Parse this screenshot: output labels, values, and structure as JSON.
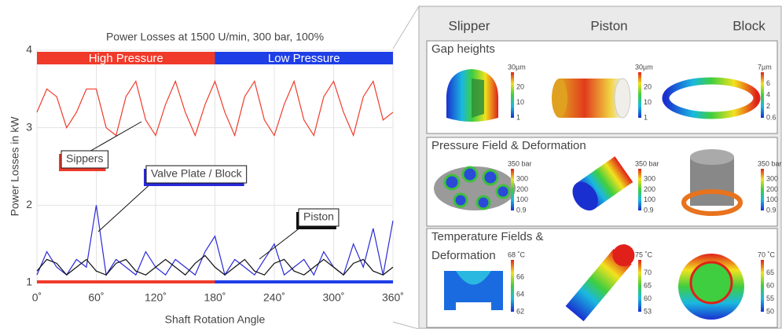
{
  "chart_data": {
    "type": "line",
    "title": "Power Losses at 1500 U/min, 300 bar, 100%",
    "xlabel": "Shaft Rotation Angle",
    "ylabel": "Power Losses in kW",
    "x": [
      0,
      10,
      20,
      30,
      40,
      50,
      60,
      70,
      80,
      90,
      100,
      110,
      120,
      130,
      140,
      150,
      160,
      170,
      180,
      190,
      200,
      210,
      220,
      230,
      240,
      250,
      260,
      270,
      280,
      290,
      300,
      310,
      320,
      330,
      340,
      350,
      360
    ],
    "series": [
      {
        "name": "Sippers",
        "color": "#f03a2a",
        "values": [
          3.2,
          3.5,
          3.4,
          3.0,
          3.2,
          3.5,
          3.5,
          3.0,
          2.9,
          3.4,
          3.6,
          3.1,
          2.9,
          3.3,
          3.6,
          3.2,
          2.9,
          3.3,
          3.6,
          3.2,
          2.9,
          3.4,
          3.6,
          3.1,
          2.9,
          3.3,
          3.6,
          3.1,
          2.9,
          3.4,
          3.6,
          3.2,
          2.9,
          3.4,
          3.6,
          3.1,
          3.2
        ]
      },
      {
        "name": "Valve Plate / Block",
        "color": "#2a2ad8",
        "values": [
          1.1,
          1.4,
          1.2,
          1.1,
          1.3,
          1.2,
          2.0,
          1.1,
          1.3,
          1.2,
          1.1,
          1.4,
          1.2,
          1.1,
          1.3,
          1.2,
          1.1,
          1.4,
          1.6,
          1.1,
          1.3,
          1.2,
          1.1,
          1.3,
          1.5,
          1.1,
          1.2,
          1.3,
          1.1,
          1.4,
          1.2,
          1.1,
          1.5,
          1.2,
          1.7,
          1.1,
          1.8
        ]
      },
      {
        "name": "Piston",
        "color": "#111111",
        "values": [
          1.15,
          1.3,
          1.25,
          1.1,
          1.2,
          1.3,
          1.15,
          1.1,
          1.25,
          1.3,
          1.15,
          1.1,
          1.2,
          1.3,
          1.2,
          1.1,
          1.25,
          1.35,
          1.2,
          1.1,
          1.2,
          1.3,
          1.15,
          1.1,
          1.25,
          1.3,
          1.15,
          1.1,
          1.2,
          1.3,
          1.2,
          1.1,
          1.25,
          1.3,
          1.15,
          1.1,
          1.2
        ]
      }
    ],
    "regions": [
      {
        "label": "High Pressure",
        "from": 0,
        "to": 180,
        "color": "#f03a2a"
      },
      {
        "label": "Low Pressure",
        "from": 180,
        "to": 360,
        "color": "#1e3ee6"
      }
    ],
    "xlim": [
      0,
      360
    ],
    "xticks": [
      {
        "value": 0,
        "label": "0˚"
      },
      {
        "value": 60,
        "label": "60˚"
      },
      {
        "value": 120,
        "label": "120˚"
      },
      {
        "value": 180,
        "label": "180˚"
      },
      {
        "value": 240,
        "label": "240˚"
      },
      {
        "value": 300,
        "label": "300˚"
      },
      {
        "value": 360,
        "label": "360˚"
      }
    ],
    "ylim": [
      1,
      4
    ],
    "yticks": [
      1,
      2,
      3,
      4
    ],
    "grid": true
  },
  "panel": {
    "columns": [
      "Slipper",
      "Piston",
      "Block"
    ],
    "rows": [
      {
        "title": [
          "Gap heights"
        ],
        "scales": [
          [
            "30µm",
            "20",
            "10",
            "1"
          ],
          [
            "30µm",
            "20",
            "10",
            "1"
          ],
          [
            "7µm",
            "6",
            "4",
            "2",
            "0.6"
          ]
        ]
      },
      {
        "title": [
          "Pressure Field & Deformation"
        ],
        "scales": [
          [
            "350 bar",
            "300",
            "200",
            "100",
            "0.9"
          ],
          [
            "350 bar",
            "300",
            "200",
            "100",
            "0.9"
          ],
          [
            "350 bar",
            "300",
            "200",
            "100",
            "0.9"
          ]
        ]
      },
      {
        "title": [
          "Temperature Fields &",
          "Deformation"
        ],
        "scales": [
          [
            "68 ˚C",
            "66",
            "64",
            "62"
          ],
          [
            "75 ˚C",
            "70",
            "65",
            "60",
            "53"
          ],
          [
            "70 ˚C",
            "65",
            "60",
            "55",
            "50"
          ]
        ]
      }
    ]
  }
}
